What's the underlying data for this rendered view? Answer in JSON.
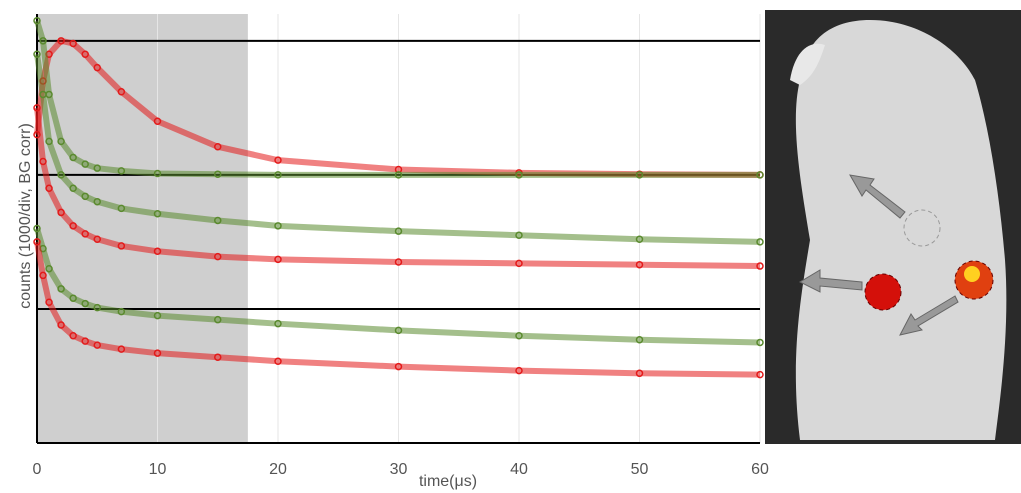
{
  "chart_data": {
    "type": "scatter",
    "x_label": "time(μs)",
    "y_label": "counts (1000/div, BG corr)",
    "x": [
      0,
      0.5,
      1,
      2,
      3,
      4,
      5,
      7,
      10,
      15,
      20,
      30,
      40,
      50,
      60
    ],
    "xlim": [
      0,
      60
    ],
    "xticks": [
      0,
      10,
      20,
      30,
      40,
      50,
      60
    ],
    "ylim": [
      0,
      3200
    ],
    "baselines": [
      1000,
      2000,
      3000
    ],
    "shade_xlim": [
      0,
      17.5
    ],
    "grid": true,
    "series": [
      {
        "color": "#e31a1a",
        "values": [
          2300,
          2700,
          2900,
          3000,
          2980,
          2900,
          2800,
          2620,
          2400,
          2210,
          2110,
          2040,
          2015,
          2005,
          2000
        ]
      },
      {
        "color": "#5a8a2e",
        "values": [
          3150,
          3000,
          2600,
          2250,
          2130,
          2080,
          2050,
          2030,
          2010,
          2005,
          2000,
          2000,
          2000,
          2000,
          2000
        ]
      },
      {
        "color": "#5a8a2e",
        "values": [
          2900,
          2600,
          2250,
          2000,
          1900,
          1840,
          1800,
          1750,
          1710,
          1660,
          1620,
          1580,
          1550,
          1520,
          1500
        ]
      },
      {
        "color": "#e31a1a",
        "values": [
          2500,
          2100,
          1900,
          1720,
          1620,
          1560,
          1520,
          1470,
          1430,
          1390,
          1370,
          1350,
          1340,
          1330,
          1320
        ]
      },
      {
        "color": "#5a8a2e",
        "values": [
          1600,
          1450,
          1300,
          1150,
          1080,
          1040,
          1010,
          980,
          950,
          920,
          890,
          840,
          800,
          770,
          750
        ]
      },
      {
        "color": "#e31a1a",
        "values": [
          1500,
          1250,
          1050,
          880,
          800,
          760,
          730,
          700,
          670,
          640,
          610,
          570,
          540,
          520,
          510
        ]
      }
    ]
  }
}
